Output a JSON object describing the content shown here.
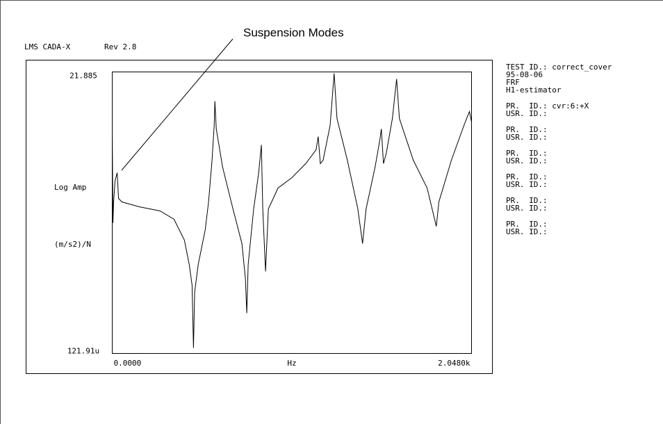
{
  "chart_data": {
    "type": "line",
    "header": [
      "LMS CADA-X",
      "Rev 2.8"
    ],
    "annotation": "Suspension Modes",
    "ylabel": [
      "Log Amp",
      "(m/s2)/N"
    ],
    "xlabel": "Hz",
    "log_y": true,
    "xlim": [
      0,
      2048
    ],
    "ylim": [
      0.00012191,
      21.885
    ],
    "xticks": [
      {
        "value": 0,
        "label": "0.0000"
      },
      {
        "value": 2048,
        "label": "2.0480k"
      }
    ],
    "yticks": [
      {
        "value": 0.00012191,
        "label": "121.91u"
      },
      21.885
    ],
    "x": [
      0,
      4,
      8,
      16,
      28,
      36,
      55,
      154,
      273,
      352,
      411,
      439,
      455,
      463,
      470,
      490,
      530,
      549,
      569,
      581,
      585,
      593,
      629,
      688,
      739,
      759,
      767,
      775,
      806,
      834,
      850,
      858,
      874,
      890,
      945,
      1024,
      1103,
      1162,
      1174,
      1186,
      1202,
      1242,
      1265,
      1281,
      1340,
      1400,
      1427,
      1447,
      1498,
      1526,
      1534,
      1546,
      1562,
      1597,
      1621,
      1637,
      1716,
      1795,
      1847,
      1862,
      1933,
      2012,
      2036,
      2048
    ],
    "series": [
      {
        "color": "#000000",
        "values": [
          1.63,
          0.0335,
          0.082,
          0.201,
          0.288,
          0.0953,
          0.082,
          0.0665,
          0.0556,
          0.0389,
          0.0159,
          0.00557,
          0.00228,
          0.000155,
          0.00169,
          0.00557,
          0.0248,
          0.082,
          0.492,
          2.19,
          6.24,
          1.89,
          0.366,
          0.0608,
          0.0137,
          0.00307,
          0.000689,
          0.00557,
          0.0608,
          0.271,
          0.95,
          0.0608,
          0.00414,
          0.0608,
          0.149,
          0.233,
          0.425,
          0.771,
          1.36,
          0.425,
          0.492,
          2.19,
          20.6,
          2.96,
          0.492,
          0.0608,
          0.0137,
          0.0608,
          0.366,
          1.21,
          1.89,
          0.425,
          0.664,
          2.96,
          16.2,
          2.96,
          0.492,
          0.149,
          0.0288,
          0.082,
          0.492,
          2.55,
          3.99,
          2.55
        ]
      }
    ],
    "info": [
      [
        "TEST ID.: correct_cover",
        "95-08-06",
        "FRF",
        "H1-estimator"
      ],
      [
        "PR.  ID.: cvr:6:+X",
        "USR. ID.:"
      ],
      [
        "PR.  ID.:",
        "USR. ID.:"
      ],
      [
        "PR.  ID.:",
        "USR. ID.:"
      ],
      [
        "PR.  ID.:",
        "USR. ID.:"
      ],
      [
        "PR.  ID.:",
        "USR. ID.:"
      ],
      [
        "PR.  ID.:",
        "USR. ID.:"
      ]
    ]
  }
}
